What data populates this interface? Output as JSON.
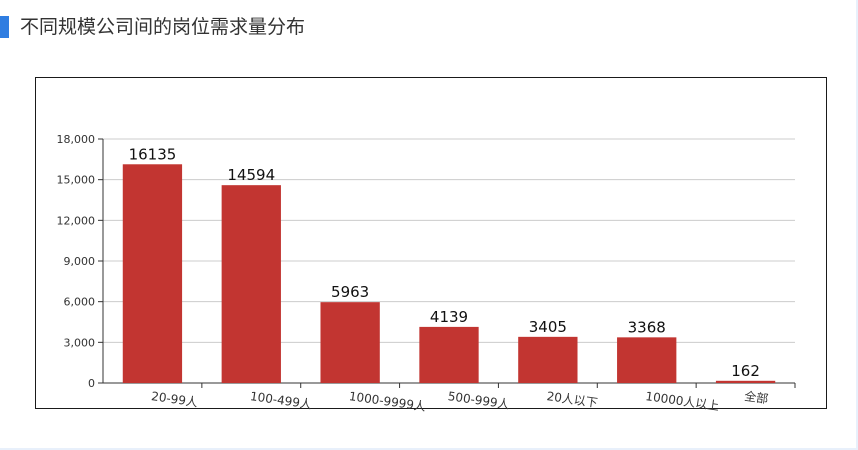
{
  "header": {
    "title": "不同规模公司间的岗位需求量分布"
  },
  "colors": {
    "accent": "#2f7de1",
    "bar": "#c23531",
    "grid": "#cccccc"
  },
  "chart_data": {
    "type": "bar",
    "title": "",
    "xlabel": "",
    "ylabel": "",
    "ylim": [
      0,
      18000
    ],
    "grid": true,
    "yticks": [
      "0",
      "3,000",
      "6,000",
      "9,000",
      "12,000",
      "15,000",
      "18,000"
    ],
    "categories": [
      "20-99人",
      "100-499人",
      "1000-9999人",
      "500-999人",
      "20人以下",
      "10000人以上",
      "全部"
    ],
    "values": [
      16135,
      14594,
      5963,
      4139,
      3405,
      3368,
      162
    ]
  }
}
